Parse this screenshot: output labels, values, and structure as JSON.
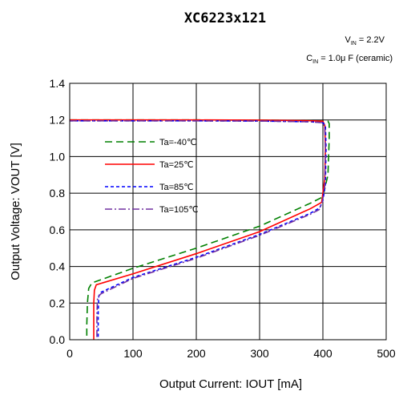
{
  "chart_data": {
    "type": "line",
    "title": "XC6223x121",
    "conditions": [
      {
        "main": "V",
        "sub": "IN",
        "rest": " = 2.2V"
      },
      {
        "main": "C",
        "sub": "IN",
        "rest": " = 1.0μ F (ceramic)"
      }
    ],
    "xlabel": "Output Current: IOUT [mA]",
    "ylabel": "Output Voltage: VOUT [V]",
    "xlim": [
      0,
      500
    ],
    "ylim": [
      0,
      1.4
    ],
    "xticks": [
      0,
      100,
      200,
      300,
      400,
      500
    ],
    "yticks": [
      0.0,
      0.2,
      0.4,
      0.6,
      0.8,
      1.0,
      1.2,
      1.4
    ],
    "xtick_labels": [
      "0",
      "100",
      "200",
      "300",
      "400",
      "500"
    ],
    "ytick_labels": [
      "0.0",
      "0.2",
      "0.4",
      "0.6",
      "0.8",
      "1.0",
      "1.2",
      "1.4"
    ],
    "grid": true,
    "legend_position": "left",
    "series": [
      {
        "name": "Ta=-40℃",
        "color": "#008000",
        "dash": "longdash",
        "x": [
          0,
          100,
          200,
          300,
          380,
          408,
          410,
          410,
          408,
          400,
          380,
          300,
          200,
          100,
          35,
          30,
          28,
          27,
          27
        ],
        "y": [
          1.2,
          1.2,
          1.2,
          1.199,
          1.196,
          1.193,
          1.18,
          1.1,
          0.9,
          0.78,
          0.745,
          0.62,
          0.5,
          0.39,
          0.31,
          0.28,
          0.2,
          0.08,
          0.0
        ]
      },
      {
        "name": "Ta=25℃",
        "color": "#ff0000",
        "dash": "solid",
        "x": [
          0,
          100,
          200,
          300,
          380,
          400,
          403,
          404,
          403,
          398,
          380,
          300,
          200,
          100,
          42,
          39,
          38,
          38,
          38
        ],
        "y": [
          1.2,
          1.2,
          1.2,
          1.199,
          1.196,
          1.193,
          1.17,
          1.05,
          0.88,
          0.75,
          0.715,
          0.59,
          0.47,
          0.36,
          0.3,
          0.27,
          0.2,
          0.08,
          0.0
        ]
      },
      {
        "name": "Ta=85℃",
        "color": "#0000ff",
        "dash": "shortdash",
        "x": [
          0,
          100,
          200,
          300,
          380,
          400,
          404,
          405,
          404,
          400,
          395,
          380,
          300,
          200,
          100,
          50,
          46,
          45,
          45
        ],
        "y": [
          1.195,
          1.195,
          1.195,
          1.194,
          1.19,
          1.185,
          1.17,
          1.05,
          0.85,
          0.76,
          0.72,
          0.69,
          0.575,
          0.45,
          0.34,
          0.26,
          0.24,
          0.15,
          0.0
        ]
      },
      {
        "name": "Ta=105℃",
        "color": "#7030a0",
        "dash": "dashdot",
        "x": [
          0,
          100,
          200,
          300,
          380,
          400,
          403,
          404,
          403,
          399,
          394,
          380,
          300,
          200,
          100,
          49,
          44,
          43,
          43
        ],
        "y": [
          1.195,
          1.195,
          1.195,
          1.194,
          1.19,
          1.185,
          1.16,
          1.04,
          0.84,
          0.75,
          0.71,
          0.685,
          0.57,
          0.445,
          0.335,
          0.25,
          0.23,
          0.14,
          0.0
        ]
      }
    ]
  }
}
